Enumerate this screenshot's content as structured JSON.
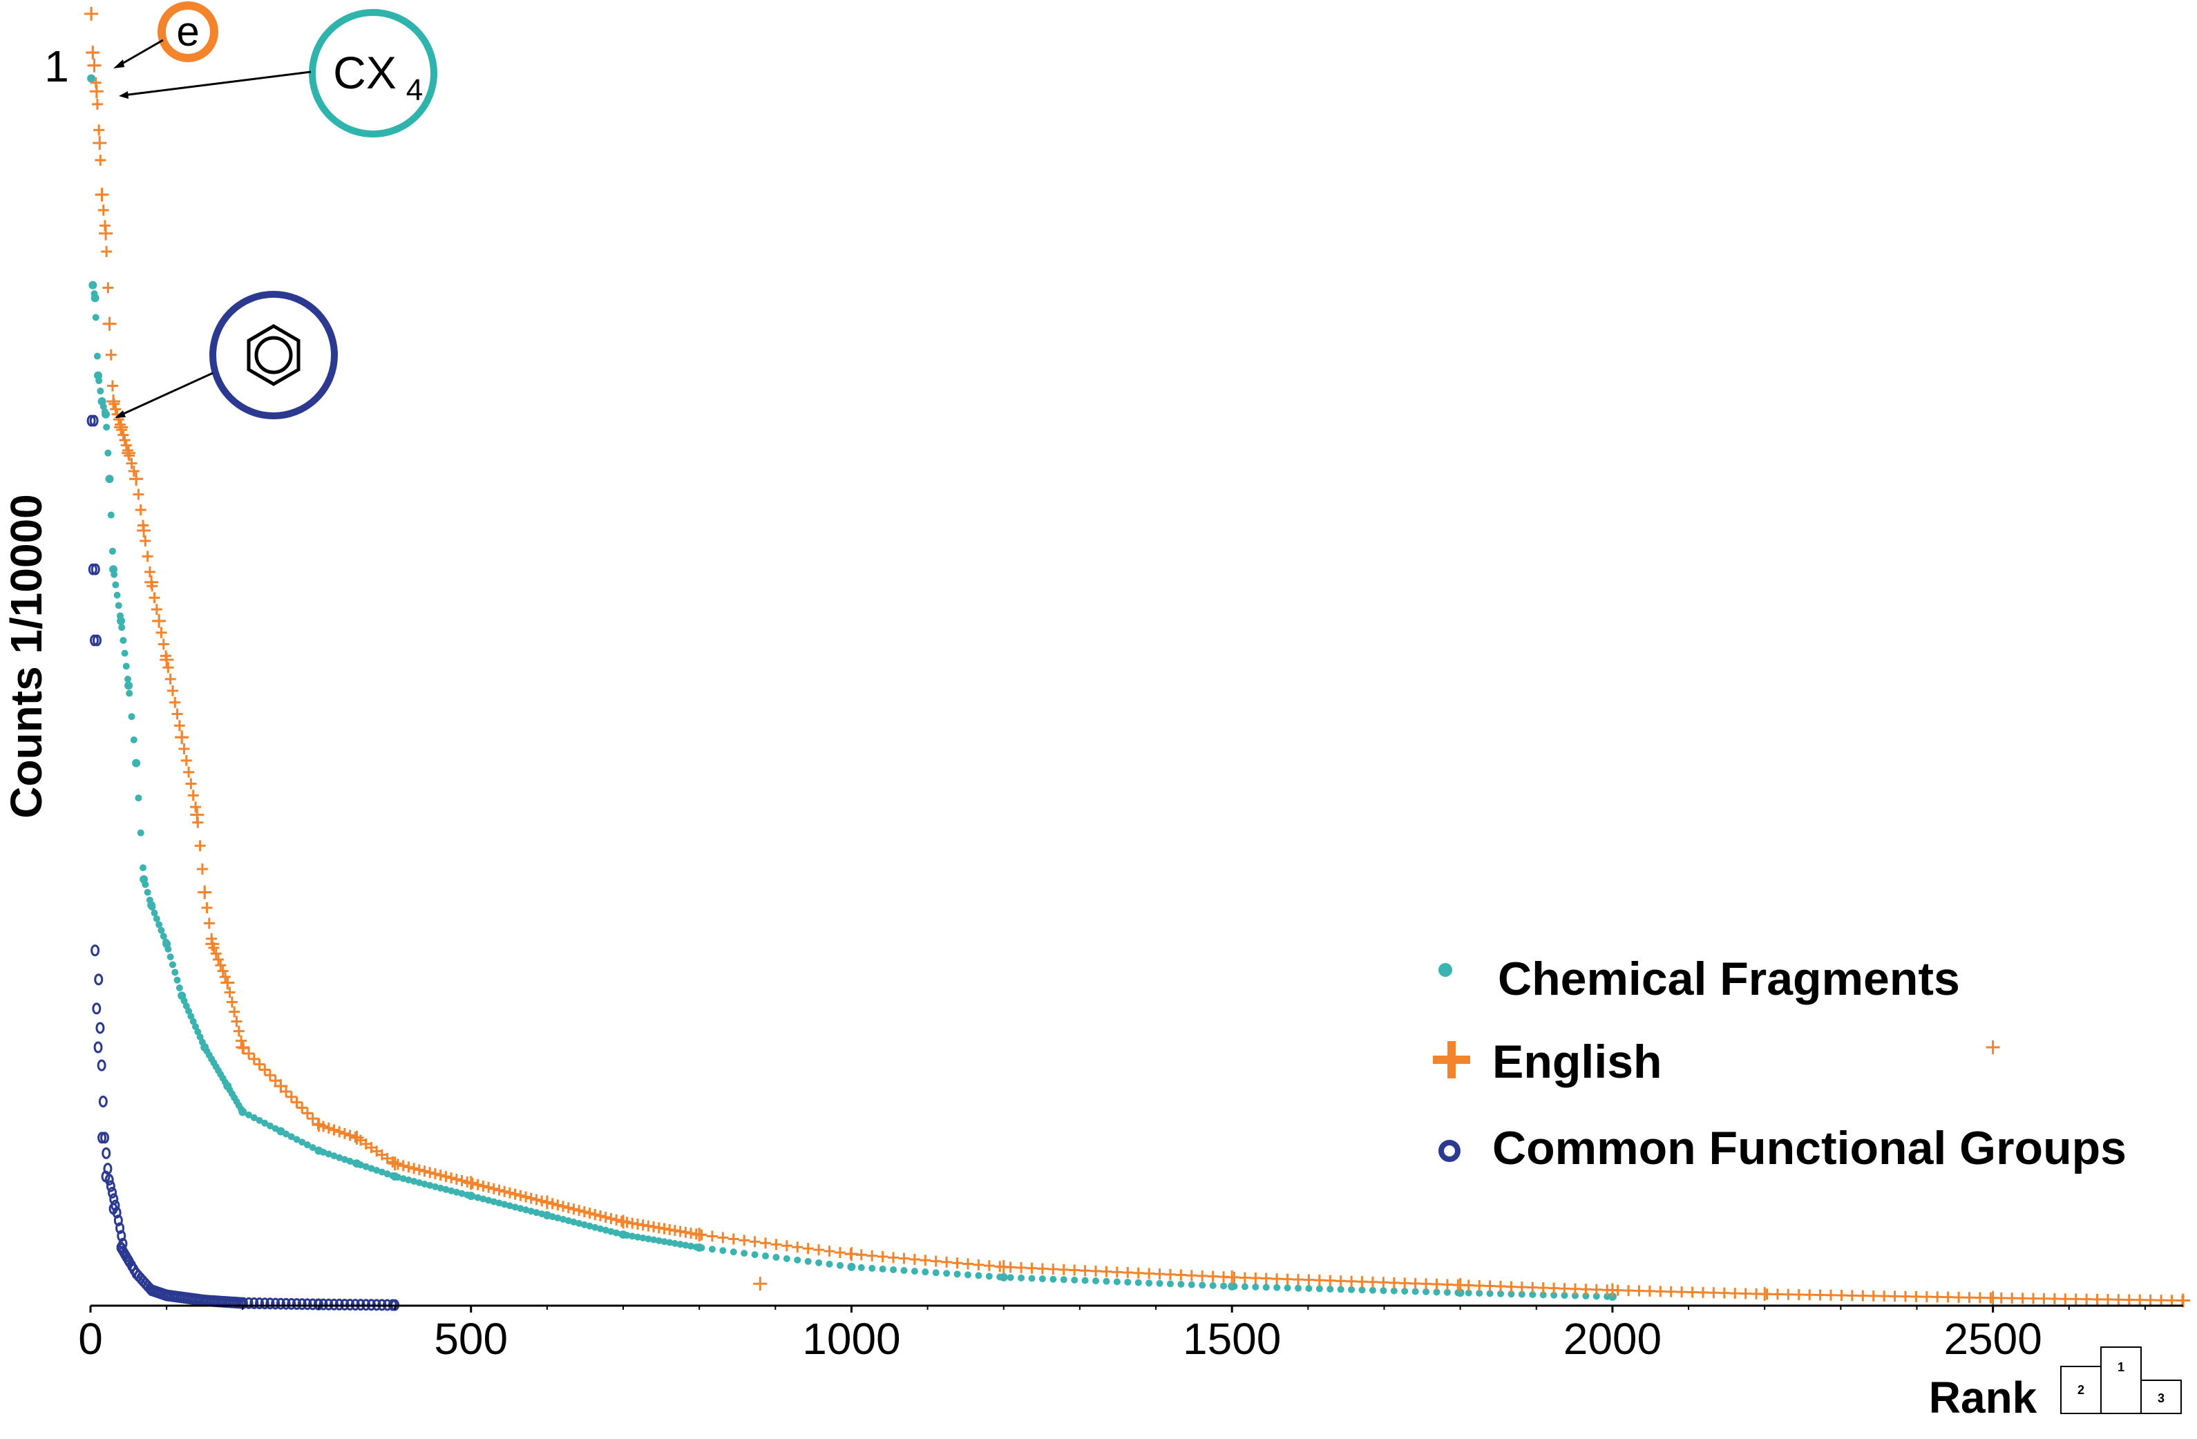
{
  "chart_data": {
    "type": "scatter",
    "xlabel": "Rank",
    "ylabel": "Counts 1/10000",
    "xlim": [
      0,
      2750
    ],
    "ylim": [
      0,
      1.0
    ],
    "x_ticks": [
      0,
      500,
      1000,
      1500,
      2000,
      2500
    ],
    "y_tick_label": "1",
    "legend_position": "right",
    "series": [
      {
        "name": "Chemical Fragments",
        "marker": "dot",
        "color": "#3bb3b0",
        "x": [
          1,
          3,
          6,
          10,
          15,
          20,
          25,
          30,
          40,
          50,
          60,
          70,
          80,
          100,
          120,
          150,
          180,
          200,
          250,
          300,
          350,
          400,
          500,
          600,
          700,
          800,
          1000,
          1200,
          1500,
          1800,
          2000
        ],
        "y": [
          0.95,
          0.79,
          0.78,
          0.72,
          0.7,
          0.69,
          0.64,
          0.57,
          0.53,
          0.48,
          0.42,
          0.33,
          0.31,
          0.28,
          0.24,
          0.2,
          0.17,
          0.15,
          0.135,
          0.12,
          0.11,
          0.1,
          0.085,
          0.07,
          0.055,
          0.045,
          0.03,
          0.022,
          0.015,
          0.01,
          0.007
        ]
      },
      {
        "name": "English",
        "marker": "plus",
        "color": "#f3842b",
        "x": [
          1,
          3,
          5,
          8,
          12,
          15,
          20,
          25,
          30,
          40,
          50,
          60,
          70,
          80,
          90,
          100,
          120,
          140,
          150,
          160,
          180,
          200,
          250,
          300,
          350,
          400,
          500,
          600,
          700,
          800,
          1000,
          1200,
          1500,
          1800,
          2000,
          2200,
          2500,
          2750,
          880,
          2500
        ],
        "y": [
          1.0,
          0.97,
          0.96,
          0.94,
          0.9,
          0.86,
          0.83,
          0.76,
          0.7,
          0.68,
          0.66,
          0.64,
          0.6,
          0.56,
          0.53,
          0.5,
          0.44,
          0.38,
          0.32,
          0.28,
          0.25,
          0.2,
          0.17,
          0.14,
          0.13,
          0.11,
          0.095,
          0.08,
          0.065,
          0.055,
          0.04,
          0.03,
          0.022,
          0.016,
          0.012,
          0.009,
          0.006,
          0.004,
          0.017,
          0.2
        ]
      },
      {
        "name": "Common Functional Groups",
        "marker": "circle",
        "color": "#2b3990",
        "x": [
          1,
          3,
          5,
          6,
          8,
          10,
          15,
          20,
          30,
          40,
          50,
          60,
          80,
          100,
          150,
          200,
          300,
          400
        ],
        "y": [
          0.685,
          0.57,
          0.515,
          0.275,
          0.23,
          0.2,
          0.13,
          0.1,
          0.075,
          0.045,
          0.035,
          0.025,
          0.012,
          0.008,
          0.004,
          0.002,
          0.001,
          0.0005
        ]
      }
    ],
    "annotations": [
      {
        "label": "e",
        "series": "English",
        "x": 1,
        "y": 1.0
      },
      {
        "label": "CX",
        "subscript": "4",
        "series": "Chemical Fragments",
        "x": 3,
        "y": 0.95
      },
      {
        "label": "benzene-ring-icon",
        "series": "Common Functional Groups",
        "x": 6,
        "y": 0.69
      }
    ]
  },
  "footer": {
    "podium_labels": [
      "2",
      "1",
      "3"
    ]
  }
}
